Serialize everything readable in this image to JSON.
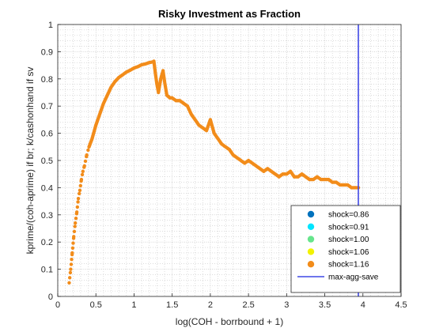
{
  "chart_data": {
    "type": "scatter",
    "title": "Risky Investment as Fraction",
    "xlabel": "log(COH - borrbound + 1)",
    "ylabel": "kprime/(coh-aprime) if br; k/cashonhand if sv",
    "xlim": [
      0,
      4.5
    ],
    "ylim": [
      0,
      1
    ],
    "xticks": [
      "0",
      "0.5",
      "1",
      "1.5",
      "2",
      "2.5",
      "3",
      "3.5",
      "4",
      "4.5"
    ],
    "yticks": [
      "0",
      "0.1",
      "0.2",
      "0.3",
      "0.4",
      "0.5",
      "0.6",
      "0.7",
      "0.8",
      "0.9",
      "1"
    ],
    "grid": true,
    "minor_grid": true,
    "legend_position": "bottom-right",
    "series": [
      {
        "name": "shock=0.86",
        "color": "#0072BD",
        "visible": false,
        "x": [],
        "y": []
      },
      {
        "name": "shock=0.91",
        "color": "#00E5FF",
        "visible": false,
        "x": [],
        "y": []
      },
      {
        "name": "shock=1.00",
        "color": "#66E58C",
        "visible": false,
        "x": [],
        "y": []
      },
      {
        "name": "shock=1.06",
        "color": "#F2F200",
        "visible": false,
        "x": [],
        "y": []
      },
      {
        "name": "shock=1.16",
        "color": "#F28C1A",
        "visible": true,
        "x": [
          0.15,
          0.17,
          0.19,
          0.21,
          0.23,
          0.25,
          0.27,
          0.29,
          0.31,
          0.33,
          0.35,
          0.38,
          0.41,
          0.45,
          0.5,
          0.55,
          0.6,
          0.65,
          0.7,
          0.75,
          0.8,
          0.85,
          0.9,
          0.95,
          1.0,
          1.05,
          1.1,
          1.15,
          1.2,
          1.24,
          1.26,
          1.28,
          1.3,
          1.32,
          1.35,
          1.38,
          1.4,
          1.43,
          1.47,
          1.5,
          1.55,
          1.6,
          1.65,
          1.7,
          1.75,
          1.8,
          1.85,
          1.9,
          1.95,
          2.0,
          2.05,
          2.1,
          2.15,
          2.2,
          2.25,
          2.3,
          2.35,
          2.4,
          2.45,
          2.5,
          2.55,
          2.6,
          2.65,
          2.7,
          2.75,
          2.8,
          2.85,
          2.9,
          2.95,
          3.0,
          3.05,
          3.1,
          3.15,
          3.2,
          3.25,
          3.3,
          3.35,
          3.4,
          3.45,
          3.5,
          3.55,
          3.6,
          3.65,
          3.7,
          3.75,
          3.8,
          3.85,
          3.9,
          3.92,
          3.94
        ],
        "y": [
          0.05,
          0.1,
          0.16,
          0.22,
          0.27,
          0.31,
          0.36,
          0.39,
          0.43,
          0.46,
          0.48,
          0.52,
          0.55,
          0.58,
          0.63,
          0.67,
          0.71,
          0.74,
          0.77,
          0.79,
          0.805,
          0.815,
          0.825,
          0.832,
          0.84,
          0.845,
          0.852,
          0.855,
          0.86,
          0.862,
          0.865,
          0.82,
          0.78,
          0.75,
          0.8,
          0.83,
          0.79,
          0.74,
          0.73,
          0.73,
          0.72,
          0.72,
          0.71,
          0.7,
          0.67,
          0.65,
          0.63,
          0.62,
          0.61,
          0.65,
          0.6,
          0.58,
          0.56,
          0.55,
          0.54,
          0.52,
          0.51,
          0.5,
          0.49,
          0.5,
          0.49,
          0.48,
          0.47,
          0.46,
          0.47,
          0.46,
          0.45,
          0.44,
          0.45,
          0.45,
          0.46,
          0.44,
          0.44,
          0.45,
          0.44,
          0.43,
          0.43,
          0.44,
          0.43,
          0.43,
          0.43,
          0.42,
          0.42,
          0.41,
          0.41,
          0.41,
          0.4,
          0.4,
          0.4,
          0.4
        ]
      }
    ],
    "vline": {
      "name": "max-agg-save",
      "x": 3.94,
      "color": "#3F48E6"
    }
  }
}
